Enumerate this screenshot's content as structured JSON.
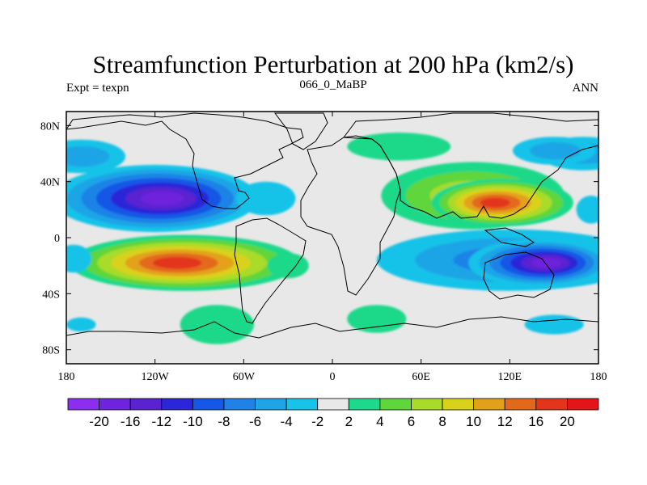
{
  "chart_data": {
    "type": "heatmap",
    "title": "Streamfunction Perturbation at 200 hPa (km2/s)",
    "subtitle_left": "Expt = texpn",
    "subtitle_center": "066_0_MaBP",
    "subtitle_right": "ANN",
    "x_ticks": [
      "180",
      "120W",
      "60W",
      "0",
      "60E",
      "120E",
      "180"
    ],
    "y_ticks": [
      "80N",
      "40N",
      "0",
      "40S",
      "80S"
    ],
    "xlim": [
      -180,
      180
    ],
    "ylim": [
      -90,
      90
    ],
    "colorbar": {
      "labels": [
        "-20",
        "-16",
        "-12",
        "-10",
        "-8",
        "-6",
        "-4",
        "-2",
        "2",
        "4",
        "6",
        "8",
        "10",
        "12",
        "16",
        "20"
      ],
      "colors": [
        "#8a2ff0",
        "#6e24dc",
        "#5a22d0",
        "#2b27d8",
        "#1557e6",
        "#1f83e6",
        "#1fa5e6",
        "#17c3e8",
        "#e8e8e8",
        "#1fd98a",
        "#5fd63a",
        "#a8db2a",
        "#d9d21a",
        "#e3a11a",
        "#e3691a",
        "#e3351a",
        "#e3141a"
      ]
    },
    "features": [
      {
        "name": "negative center north pacific",
        "lon": -120,
        "lat": 30,
        "peak": -16
      },
      {
        "name": "positive center southeast pacific",
        "lon": -95,
        "lat": -20,
        "peak": 16
      },
      {
        "name": "positive center asia",
        "lon": 110,
        "lat": 25,
        "peak": 16
      },
      {
        "name": "negative center south indian/australia",
        "lon": 140,
        "lat": -18,
        "peak": -16
      },
      {
        "name": "negative band north pacific high latitude",
        "lon": 155,
        "lat": 60,
        "peak": -4
      },
      {
        "name": "positive center south atlantic",
        "lon": -80,
        "lat": -60,
        "peak": 4
      }
    ]
  }
}
